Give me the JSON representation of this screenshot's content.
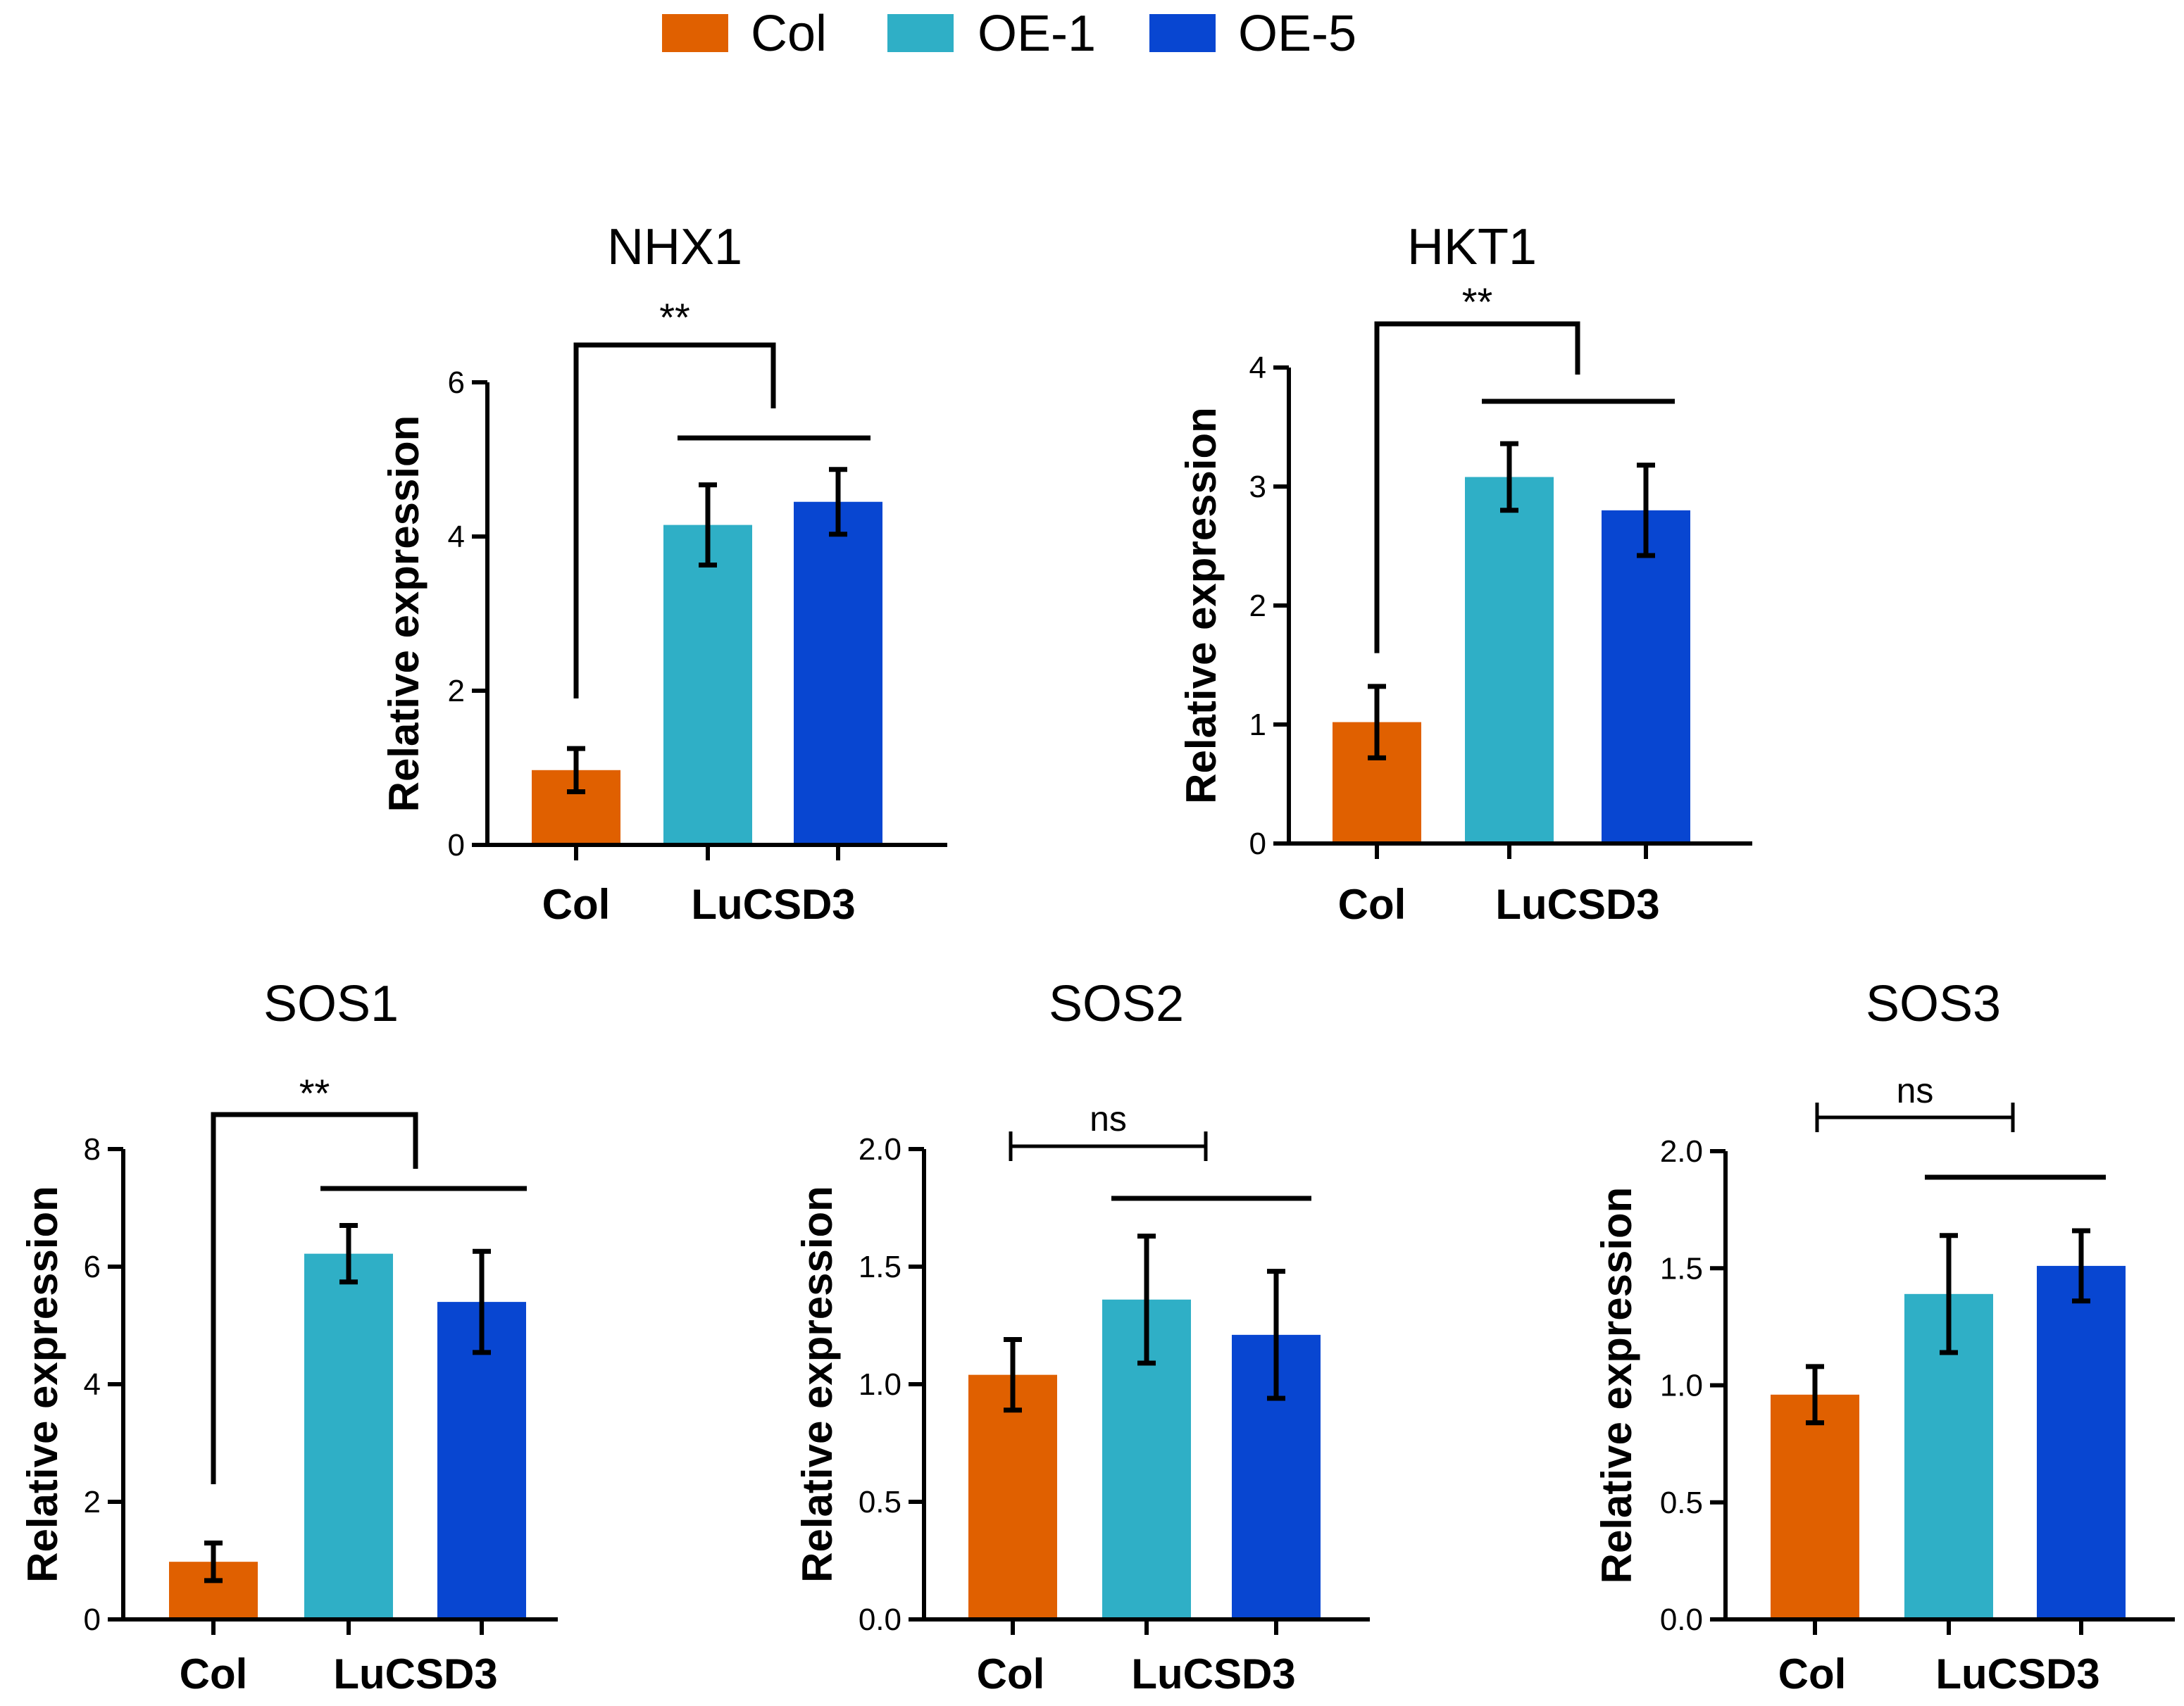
{
  "legend": [
    {
      "label": "Col",
      "color": "#E06000"
    },
    {
      "label": "OE-1",
      "color": "#2FAFC6"
    },
    {
      "label": "OE-5",
      "color": "#0846D1"
    }
  ],
  "colors": {
    "axis": "#000000",
    "text": "#000000"
  },
  "chart_data": [
    {
      "type": "bar",
      "title": "NHX1",
      "ylabel": "Relative expression",
      "ylim": [
        0,
        6
      ],
      "yticks": [
        0,
        2,
        4,
        6
      ],
      "ytick_labels": [
        "0",
        "2",
        "4",
        "6"
      ],
      "categories": [
        "Col",
        "LuCSD3"
      ],
      "series": [
        {
          "name": "Col",
          "value": 0.97,
          "error": 0.28
        },
        {
          "name": "OE-1",
          "value": 4.15,
          "error": 0.52
        },
        {
          "name": "OE-5",
          "value": 4.45,
          "error": 0.42
        }
      ],
      "significance": "**"
    },
    {
      "type": "bar",
      "title": "HKT1",
      "ylabel": "Relative expression",
      "ylim": [
        0,
        4
      ],
      "yticks": [
        0,
        1,
        2,
        3,
        4
      ],
      "ytick_labels": [
        "0",
        "1",
        "2",
        "3",
        "4"
      ],
      "categories": [
        "Col",
        "LuCSD3"
      ],
      "series": [
        {
          "name": "Col",
          "value": 1.02,
          "error": 0.3
        },
        {
          "name": "OE-1",
          "value": 3.08,
          "error": 0.28
        },
        {
          "name": "OE-5",
          "value": 2.8,
          "error": 0.38
        }
      ],
      "significance": "**"
    },
    {
      "type": "bar",
      "title": "SOS1",
      "ylabel": "Relative expression",
      "ylim": [
        0,
        8
      ],
      "yticks": [
        0,
        2,
        4,
        6,
        8
      ],
      "ytick_labels": [
        "0",
        "2",
        "4",
        "6",
        "8"
      ],
      "categories": [
        "Col",
        "LuCSD3"
      ],
      "series": [
        {
          "name": "Col",
          "value": 0.98,
          "error": 0.32
        },
        {
          "name": "OE-1",
          "value": 6.22,
          "error": 0.48
        },
        {
          "name": "OE-5",
          "value": 5.4,
          "error": 0.86
        }
      ],
      "significance": "**"
    },
    {
      "type": "bar",
      "title": "SOS2",
      "ylabel": "Relative expression",
      "ylim": [
        0,
        2.0
      ],
      "yticks": [
        0,
        0.5,
        1.0,
        1.5,
        2.0
      ],
      "ytick_labels": [
        "0.0",
        "0.5",
        "1.0",
        "1.5",
        "2.0"
      ],
      "categories": [
        "Col",
        "LuCSD3"
      ],
      "series": [
        {
          "name": "Col",
          "value": 1.04,
          "error": 0.15
        },
        {
          "name": "OE-1",
          "value": 1.36,
          "error": 0.27
        },
        {
          "name": "OE-5",
          "value": 1.21,
          "error": 0.27
        }
      ],
      "significance": "ns"
    },
    {
      "type": "bar",
      "title": "SOS3",
      "ylabel": "Relative expression",
      "ylim": [
        0,
        2.0
      ],
      "yticks": [
        0,
        0.5,
        1.0,
        1.5,
        2.0
      ],
      "ytick_labels": [
        "0.0",
        "0.5",
        "1.0",
        "1.5",
        "2.0"
      ],
      "categories": [
        "Col",
        "LuCSD3"
      ],
      "series": [
        {
          "name": "Col",
          "value": 0.96,
          "error": 0.12
        },
        {
          "name": "OE-1",
          "value": 1.39,
          "error": 0.25
        },
        {
          "name": "OE-5",
          "value": 1.51,
          "error": 0.15
        }
      ],
      "significance": "ns"
    }
  ]
}
